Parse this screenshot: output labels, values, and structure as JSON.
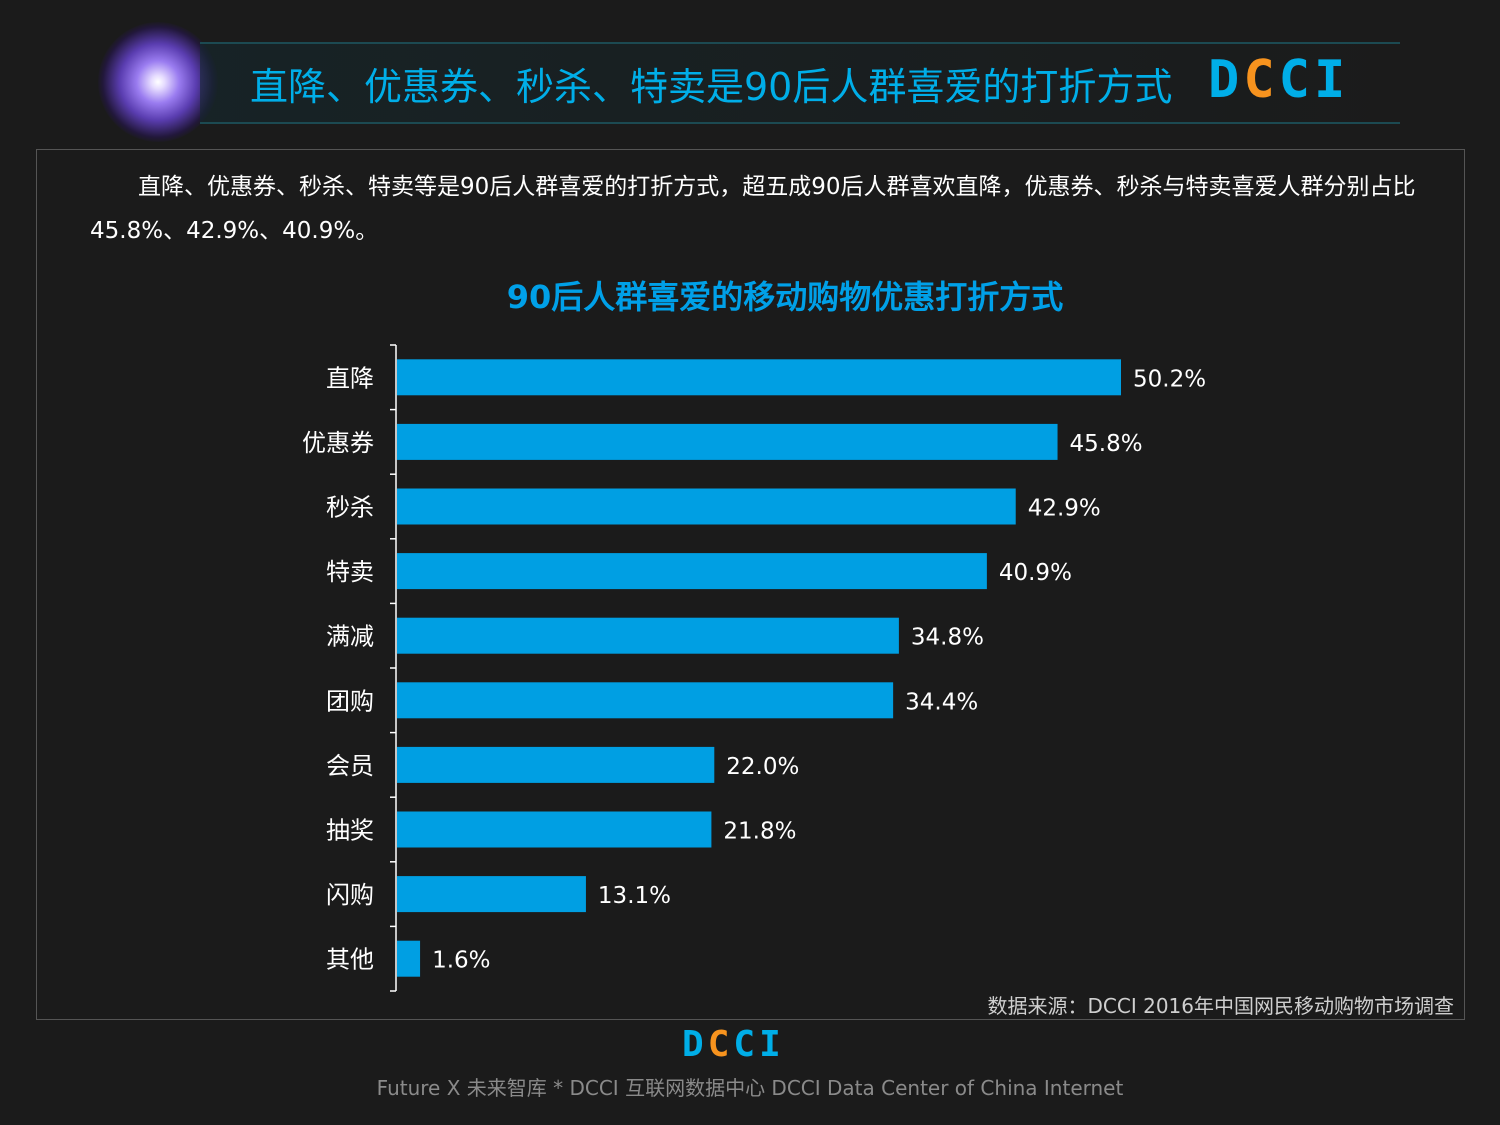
{
  "header": {
    "title": "直降、优惠券、秒杀、特卖是90后人群喜爱的打折方式",
    "logo": "DCCI"
  },
  "intro": "直降、优惠券、秒杀、特卖等是90后人群喜爱的打折方式，超五成90后人群喜欢直降，优惠券、秒杀与特卖喜爱人群分别占比45.8%、42.9%、40.9%。",
  "chart_data": {
    "type": "bar",
    "orientation": "horizontal",
    "title": "90后人群喜爱的移动购物优惠打折方式",
    "categories": [
      "直降",
      "优惠券",
      "秒杀",
      "特卖",
      "满减",
      "团购",
      "会员",
      "抽奖",
      "闪购",
      "其他"
    ],
    "values": [
      50.2,
      45.8,
      42.9,
      40.9,
      34.8,
      34.4,
      22.0,
      21.8,
      13.1,
      1.6
    ],
    "labels": [
      "50.2%",
      "45.8%",
      "42.9%",
      "40.9%",
      "34.8%",
      "34.4%",
      "22.0%",
      "21.8%",
      "13.1%",
      "1.6%"
    ],
    "unit": "%",
    "xlim": [
      0,
      50.2
    ],
    "bar_color": "#009fe3",
    "grid": false,
    "xlabel": "",
    "ylabel": ""
  },
  "source": "数据来源：DCCI 2016年中国网民移动购物市场调查",
  "footer": {
    "logo": "DCCI",
    "text": "Future X 未来智库 * DCCI 互联网数据中心 DCCI Data Center of China Internet"
  }
}
